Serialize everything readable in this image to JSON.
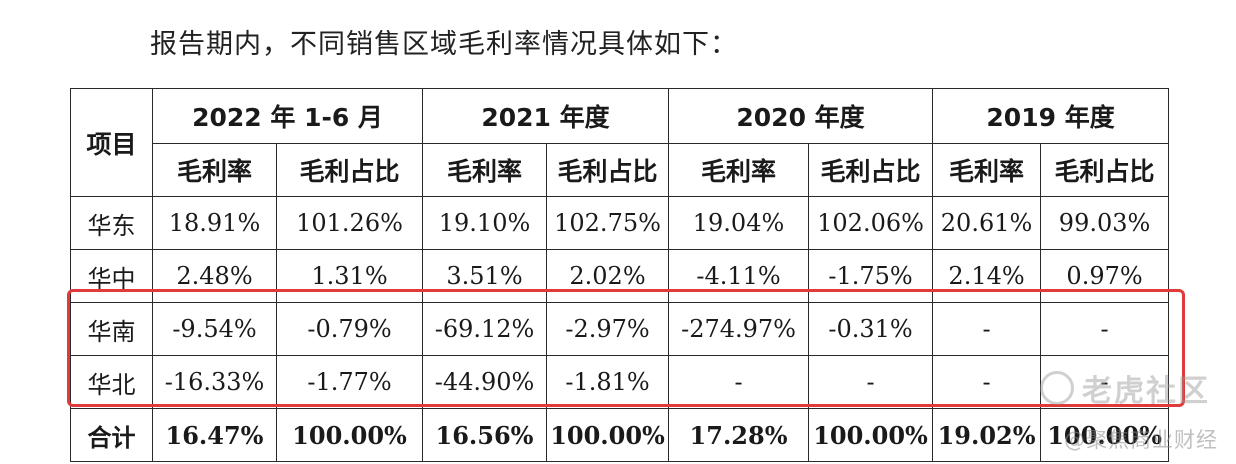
{
  "intro": "报告期内，不同销售区域毛利率情况具体如下：",
  "table": {
    "item_header": "项目",
    "periods": [
      "2022 年 1-6 月",
      "2021 年度",
      "2020 年度",
      "2019 年度"
    ],
    "subheaders": [
      "毛利率",
      "毛利占比",
      "毛利率",
      "毛利占比",
      "毛利率",
      "毛利占比",
      "毛利率",
      "毛利占比"
    ],
    "rows": [
      {
        "region": "华东",
        "values": [
          "18.91%",
          "101.26%",
          "19.10%",
          "102.75%",
          "19.04%",
          "102.06%",
          "20.61%",
          "99.03%"
        ]
      },
      {
        "region": "华中",
        "values": [
          "2.48%",
          "1.31%",
          "3.51%",
          "2.02%",
          "-4.11%",
          "-1.75%",
          "2.14%",
          "0.97%"
        ]
      },
      {
        "region": "华南",
        "values": [
          "-9.54%",
          "-0.79%",
          "-69.12%",
          "-2.97%",
          "-274.97%",
          "-0.31%",
          "-",
          "-"
        ]
      },
      {
        "region": "华北",
        "values": [
          "-16.33%",
          "-1.77%",
          "-44.90%",
          "-1.81%",
          "-",
          "-",
          "-",
          "-"
        ]
      },
      {
        "region": "合计",
        "values": [
          "16.47%",
          "100.00%",
          "16.56%",
          "100.00%",
          "17.28%",
          "100.00%",
          "19.02%",
          "100.00%"
        ]
      }
    ]
  },
  "watermark": {
    "main": "老虎社区",
    "sub": "@聚焦商业财经"
  },
  "colors": {
    "highlight_border": "#e03a3a"
  }
}
